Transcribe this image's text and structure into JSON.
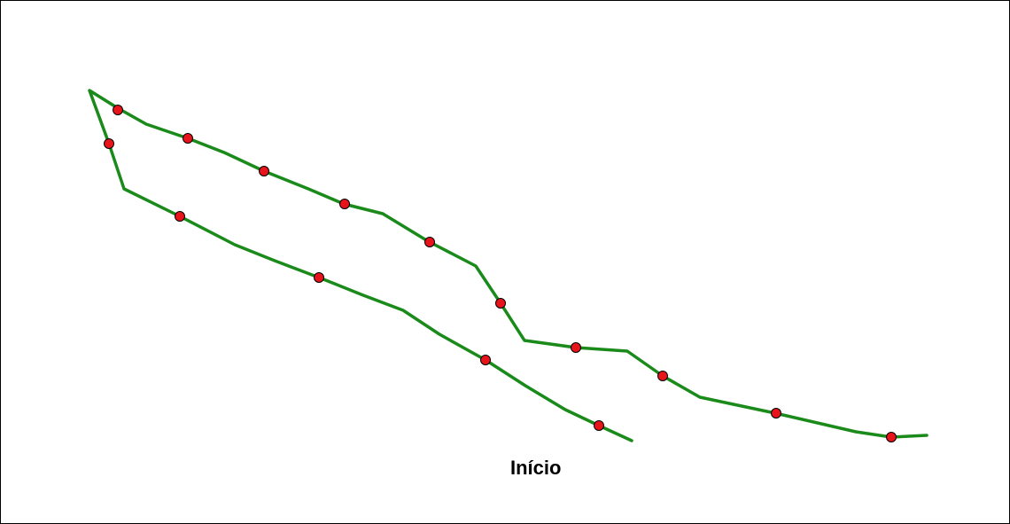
{
  "diagram": {
    "route_color": "#1a8a1a",
    "waypoint_color": "#e8141b",
    "start_label": "Início"
  }
}
